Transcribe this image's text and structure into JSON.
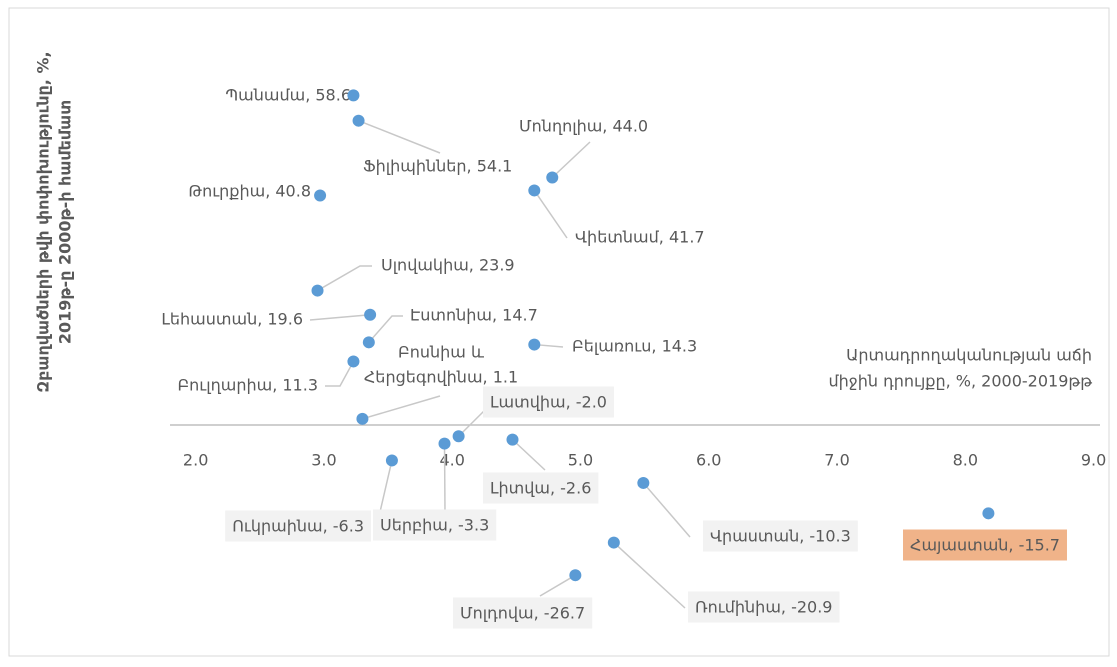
{
  "chart_data": {
    "type": "scatter",
    "x_label": [
      "Արտադրողականության աճի",
      "միջին դրույքը, %, 2000-2019թթ"
    ],
    "y_label": [
      "Զբաղվածների թվի փոփոխությունը, %,",
      "2019թ-ը 2000թ-ի համեմատ"
    ],
    "labels": [
      "Պանամա, 58.6",
      "Ֆիլիպիններ, 54.1",
      "Մոնղոլիա, 44.0",
      "Վիետնամ, 41.7",
      "Թուրքիա, 40.8",
      "Սլովակիա, 23.9",
      "Լեհաստան, 19.6",
      "Էստոնիա, 14.7",
      "Բելառուս, 14.3",
      [
        "Բոսնիա և",
        "Հերցեգովինա, 1.1"
      ],
      "Բուլղարիա, 11.3",
      "Լատվիա, -2.0",
      "Լիտվա, -2.6",
      "Սերբիա, -3.3",
      "Ուկրաինա, -6.3",
      "Վրաստան, -10.3",
      "Հայաստան, -15.7",
      "Ռումինիա, -20.9",
      "Մոլդովա, -26.7"
    ],
    "x": [
      3.23,
      3.27,
      4.78,
      4.64,
      2.97,
      2.95,
      3.36,
      3.35,
      4.64,
      3.3,
      3.23,
      4.05,
      4.47,
      3.94,
      3.53,
      5.49,
      8.18,
      5.26,
      4.96
    ],
    "y": [
      58.6,
      54.1,
      44.0,
      41.7,
      40.8,
      23.9,
      19.6,
      14.7,
      14.3,
      1.1,
      11.3,
      -2.0,
      -2.6,
      -3.3,
      -6.3,
      -10.3,
      -15.7,
      -20.9,
      -26.7
    ],
    "color": "#5b9bd5",
    "highlight": {
      "index": 16,
      "color": "#f0b389"
    },
    "xlim": [
      1.8,
      9.05
    ],
    "ylim": [
      -40,
      72
    ],
    "xticks": [
      {
        "value": 2,
        "label": "2.0"
      },
      {
        "value": 3,
        "label": "3.0"
      },
      {
        "value": 4,
        "label": "4.0"
      },
      {
        "value": 5,
        "label": "5.0"
      },
      {
        "value": 6,
        "label": "6.0"
      },
      {
        "value": 7,
        "label": "7.0"
      },
      {
        "value": 8,
        "label": "8.0"
      },
      {
        "value": 9,
        "label": "9.0"
      }
    ]
  }
}
